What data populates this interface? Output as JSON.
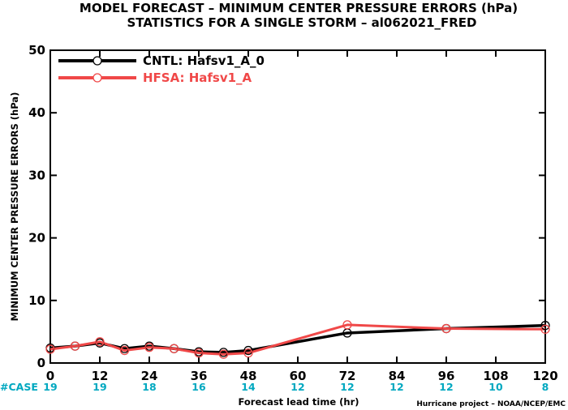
{
  "title_line1": "MODEL FORECAST – MINIMUM CENTER PRESSURE ERRORS (hPa)",
  "title_line2": "STATISTICS FOR A SINGLE STORM – al062021_FRED",
  "credit": "Hurricane project – NOAA/NCEP/EMC",
  "case_label": "#CASE",
  "chart_data": {
    "type": "line",
    "title": "MODEL FORECAST – MINIMUM CENTER PRESSURE ERRORS (hPa)",
    "subtitle": "STATISTICS FOR A SINGLE STORM – al062021_FRED",
    "xlabel": "Forecast lead time (hr)",
    "ylabel": "MINIMUM CENTER PRESSURE ERRORS (hPa)",
    "xlim": [
      0,
      120
    ],
    "ylim": [
      0,
      50
    ],
    "xticks": [
      0,
      12,
      24,
      36,
      48,
      60,
      72,
      84,
      96,
      108,
      120
    ],
    "yticks": [
      0,
      10,
      20,
      30,
      40,
      50
    ],
    "grid": false,
    "legend_position": "top-left",
    "series": [
      {
        "name": "CNTL: Hafsv1_A_0",
        "color": "#000000",
        "x": [
          0,
          6,
          12,
          18,
          24,
          30,
          36,
          42,
          48,
          72,
          96,
          120
        ],
        "y": [
          2.4,
          2.7,
          3.2,
          2.3,
          2.7,
          2.3,
          1.8,
          1.7,
          2.0,
          4.8,
          5.5,
          6.0
        ]
      },
      {
        "name": "HFSA: Hafsv1_A",
        "color": "#f04848",
        "x": [
          0,
          6,
          12,
          18,
          24,
          30,
          36,
          42,
          48,
          72,
          96,
          120
        ],
        "y": [
          2.2,
          2.7,
          3.4,
          2.0,
          2.5,
          2.3,
          1.6,
          1.4,
          1.6,
          6.1,
          5.5,
          5.4
        ]
      }
    ],
    "case_counts": {
      "x": [
        0,
        12,
        24,
        36,
        48,
        60,
        72,
        84,
        96,
        108,
        120
      ],
      "values": [
        "19",
        "19",
        "18",
        "16",
        "14",
        "12",
        "12",
        "12",
        "12",
        "10",
        "8"
      ]
    }
  }
}
